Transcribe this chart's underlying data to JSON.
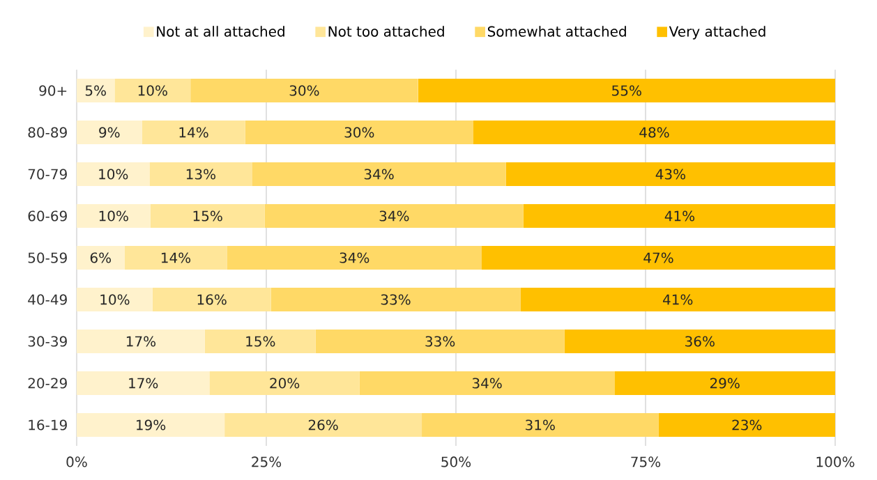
{
  "chart_data": {
    "type": "bar",
    "orientation": "horizontal",
    "stacked": true,
    "categories": [
      "90+",
      "80-89",
      "70-79",
      "60-69",
      "50-59",
      "40-49",
      "30-39",
      "20-29",
      "16-19"
    ],
    "series": [
      {
        "name": "Not at all attached",
        "color": "#fff2cc",
        "values": [
          5.0,
          8.6,
          9.6,
          9.7,
          6.3,
          10.0,
          16.9,
          17.5,
          19.5
        ],
        "value_labels": [
          "5%",
          "9%",
          "10%",
          "10%",
          "6%",
          "10%",
          "17%",
          "17%",
          "19%"
        ]
      },
      {
        "name": "Not too attached",
        "color": "#ffe699",
        "values": [
          10.0,
          13.6,
          13.5,
          15.1,
          13.5,
          15.6,
          14.6,
          19.8,
          26.0
        ],
        "value_labels": [
          "10%",
          "14%",
          "13%",
          "15%",
          "14%",
          "16%",
          "15%",
          "20%",
          "26%"
        ]
      },
      {
        "name": "Somewhat attached",
        "color": "#ffd966",
        "values": [
          30.0,
          30.1,
          33.5,
          34.1,
          33.6,
          32.9,
          32.8,
          33.6,
          31.2
        ],
        "value_labels": [
          "30%",
          "30%",
          "34%",
          "34%",
          "34%",
          "33%",
          "33%",
          "34%",
          "31%"
        ]
      },
      {
        "name": "Very attached",
        "color": "#ffc000",
        "values": [
          55.0,
          47.7,
          43.4,
          41.2,
          46.6,
          41.5,
          35.7,
          29.1,
          23.3
        ],
        "value_labels": [
          "55%",
          "48%",
          "43%",
          "41%",
          "47%",
          "41%",
          "36%",
          "29%",
          "23%"
        ]
      }
    ],
    "xlim": [
      0,
      100
    ],
    "xticks": [
      {
        "value": 0,
        "label": "0%"
      },
      {
        "value": 25,
        "label": "25%"
      },
      {
        "value": 50,
        "label": "50%"
      },
      {
        "value": 75,
        "label": "75%"
      },
      {
        "value": 100,
        "label": "100%"
      }
    ],
    "grid": "x",
    "legend": "top"
  }
}
